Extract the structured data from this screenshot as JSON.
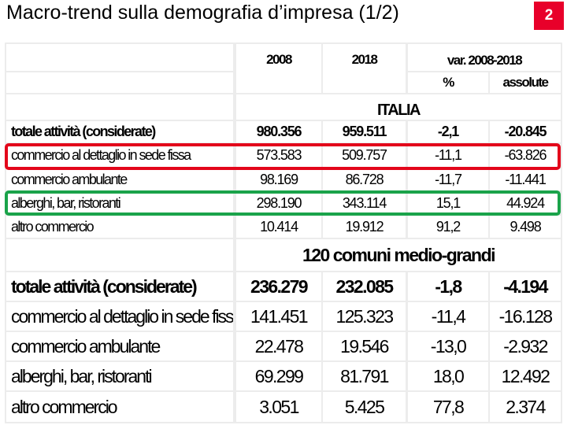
{
  "slide": {
    "title": "Macro-trend sulla demografia d’impresa (1/2)",
    "number": "2"
  },
  "header": {
    "year_a": "2008",
    "year_b": "2018",
    "variation": "var. 2008-2018",
    "pct": "%",
    "abs": "assolute"
  },
  "sections": [
    {
      "title": "ITALIA",
      "rows": [
        {
          "label": "totale attività (considerate)",
          "y2008": "980.356",
          "y2018": "959.511",
          "pct": "-2,1",
          "abs": "-20.845"
        },
        {
          "label": "commercio al dettaglio in sede fissa",
          "y2008": "573.583",
          "y2018": "509.757",
          "pct": "-11,1",
          "abs": "-63.826"
        },
        {
          "label": "commercio ambulante",
          "y2008": "98.169",
          "y2018": "86.728",
          "pct": "-11,7",
          "abs": "-11.441"
        },
        {
          "label": "alberghi, bar, ristoranti",
          "y2008": "298.190",
          "y2018": "343.114",
          "pct": "15,1",
          "abs": "44.924"
        },
        {
          "label": "altro commercio",
          "y2008": "10.414",
          "y2018": "19.912",
          "pct": "91,2",
          "abs": "9.498"
        }
      ]
    },
    {
      "title": "120 comuni medio-grandi",
      "rows": [
        {
          "label": "totale attività (considerate)",
          "y2008": "236.279",
          "y2018": "232.085",
          "pct": "-1,8",
          "abs": "-4.194"
        },
        {
          "label": "commercio al dettaglio in sede fissa",
          "y2008": "141.451",
          "y2018": "125.323",
          "pct": "-11,4",
          "abs": "-16.128"
        },
        {
          "label": "commercio ambulante",
          "y2008": "22.478",
          "y2018": "19.546",
          "pct": "-13,0",
          "abs": "-2.932"
        },
        {
          "label": "alberghi, bar, ristoranti",
          "y2008": "69.299",
          "y2018": "81.791",
          "pct": "18,0",
          "abs": "12.492"
        },
        {
          "label": "altro commercio",
          "y2008": "3.051",
          "y2018": "5.425",
          "pct": "77,8",
          "abs": "2.374"
        }
      ]
    }
  ],
  "highlights": [
    {
      "color": "#e3061b",
      "target": "commercio al dettaglio in sede fissa"
    },
    {
      "color": "#1aa34a",
      "target": "alberghi, bar, ristoranti"
    }
  ]
}
